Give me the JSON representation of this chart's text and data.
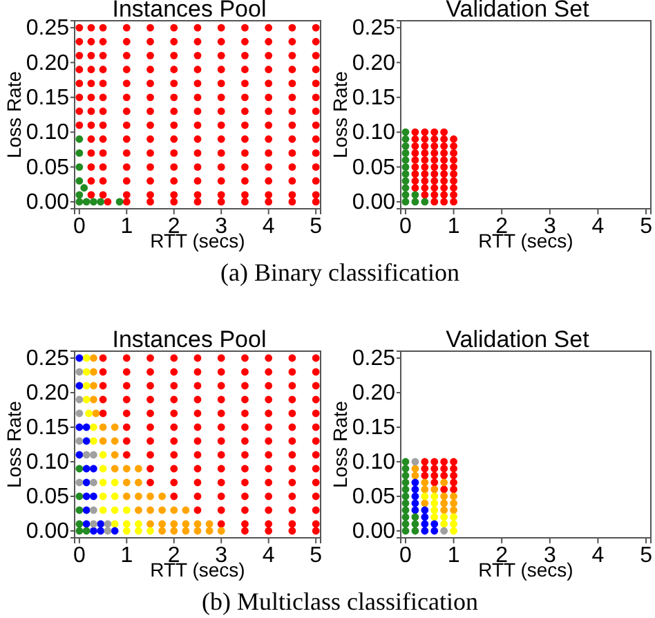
{
  "chart_data": [
    {
      "type": "scatter",
      "title": "Instances Pool",
      "xlabel": "RTT (secs)",
      "ylabel": "Loss Rate",
      "xlim": [
        -0.1,
        5.1
      ],
      "ylim": [
        -0.01,
        0.26
      ],
      "xticks": [
        0,
        1,
        2,
        3,
        4,
        5
      ],
      "yticks": [
        {
          "value": 0,
          "label": "0.00"
        },
        0.05,
        {
          "value": 0.1,
          "label": "0.10"
        },
        0.15,
        {
          "value": 0.2,
          "label": "0.20"
        },
        0.25
      ],
      "marker": "circle",
      "annotations": [
        "(a) Binary classification"
      ],
      "series": [
        {
          "color": "#ff0000",
          "x": [
            0.6,
            1,
            1.5,
            2,
            2.5,
            3,
            3.5,
            4,
            4.5,
            5,
            0.25,
            0.5,
            1,
            1.5,
            2,
            2.5,
            3,
            3.5,
            4,
            4.5,
            5,
            0.25,
            0.5,
            1,
            1.5,
            2,
            2.5,
            3,
            3.5,
            4,
            4.5,
            5,
            0.25,
            0.5,
            1,
            1.5,
            2,
            2.5,
            3,
            3.5,
            4,
            4.5,
            5,
            0.25,
            0.5,
            1,
            1.5,
            2,
            2.5,
            3,
            3.5,
            4,
            4.5,
            5,
            0.25,
            0.5,
            1,
            1.5,
            2,
            2.5,
            3,
            3.5,
            4,
            4.5,
            5,
            0,
            0.25,
            0.5,
            1,
            1.5,
            2,
            2.5,
            3,
            3.5,
            4,
            4.5,
            5,
            0,
            0.25,
            0.5,
            1,
            1.5,
            2,
            2.5,
            3,
            3.5,
            4,
            4.5,
            5,
            0,
            0.25,
            0.5,
            1,
            1.5,
            2,
            2.5,
            3,
            3.5,
            4,
            4.5,
            5,
            0,
            0.25,
            0.5,
            1,
            1.5,
            2,
            2.5,
            3,
            3.5,
            4,
            4.5,
            5,
            0,
            0.25,
            0.5,
            1,
            1.5,
            2,
            2.5,
            3,
            3.5,
            4,
            4.5,
            5,
            0,
            0.25,
            0.5,
            1,
            1.5,
            2,
            2.5,
            3,
            3.5,
            4,
            4.5,
            5,
            0,
            0.25,
            0.5,
            1,
            1.5,
            2,
            2.5,
            3,
            3.5,
            4,
            4.5,
            5,
            0,
            0.25,
            0.5,
            1,
            1.5,
            2,
            2.5,
            3,
            3.5,
            4,
            4.5,
            5
          ],
          "values": [
            0,
            0,
            0,
            0,
            0,
            0,
            0,
            0,
            0,
            0,
            0.01,
            0.01,
            0.01,
            0.01,
            0.01,
            0.01,
            0.01,
            0.01,
            0.01,
            0.01,
            0.01,
            0.03,
            0.03,
            0.03,
            0.03,
            0.03,
            0.03,
            0.03,
            0.03,
            0.03,
            0.03,
            0.03,
            0.05,
            0.05,
            0.05,
            0.05,
            0.05,
            0.05,
            0.05,
            0.05,
            0.05,
            0.05,
            0.05,
            0.07,
            0.07,
            0.07,
            0.07,
            0.07,
            0.07,
            0.07,
            0.07,
            0.07,
            0.07,
            0.07,
            0.09,
            0.09,
            0.09,
            0.09,
            0.09,
            0.09,
            0.09,
            0.09,
            0.09,
            0.09,
            0.09,
            0.11,
            0.11,
            0.11,
            0.11,
            0.11,
            0.11,
            0.11,
            0.11,
            0.11,
            0.11,
            0.11,
            0.11,
            0.13,
            0.13,
            0.13,
            0.13,
            0.13,
            0.13,
            0.13,
            0.13,
            0.13,
            0.13,
            0.13,
            0.13,
            0.15,
            0.15,
            0.15,
            0.15,
            0.15,
            0.15,
            0.15,
            0.15,
            0.15,
            0.15,
            0.15,
            0.15,
            0.17,
            0.17,
            0.17,
            0.17,
            0.17,
            0.17,
            0.17,
            0.17,
            0.17,
            0.17,
            0.17,
            0.17,
            0.19,
            0.19,
            0.19,
            0.19,
            0.19,
            0.19,
            0.19,
            0.19,
            0.19,
            0.19,
            0.19,
            0.19,
            0.21,
            0.21,
            0.21,
            0.21,
            0.21,
            0.21,
            0.21,
            0.21,
            0.21,
            0.21,
            0.21,
            0.21,
            0.23,
            0.23,
            0.23,
            0.23,
            0.23,
            0.23,
            0.23,
            0.23,
            0.23,
            0.23,
            0.23,
            0.23,
            0.25,
            0.25,
            0.25,
            0.25,
            0.25,
            0.25,
            0.25,
            0.25,
            0.25,
            0.25,
            0.25,
            0.25
          ]
        },
        {
          "color": "#228b22",
          "x": [
            0,
            0.15,
            0.3,
            0.45,
            0.85,
            0,
            0.1,
            0,
            0,
            0,
            0
          ],
          "values": [
            0,
            0,
            0,
            0,
            0,
            0.01,
            0.02,
            0.03,
            0.05,
            0.07,
            0.09
          ]
        }
      ]
    },
    {
      "type": "scatter",
      "title": "Validation Set",
      "xlabel": "RTT (secs)",
      "ylabel": "Loss Rate",
      "xlim": [
        -0.1,
        5.1
      ],
      "ylim": [
        -0.01,
        0.26
      ],
      "xticks": [
        0,
        1,
        2,
        3,
        4,
        5
      ],
      "yticks": [
        {
          "value": 0,
          "label": "0.00"
        },
        0.05,
        {
          "value": 0.1,
          "label": "0.10"
        },
        0.15,
        {
          "value": 0.2,
          "label": "0.20"
        },
        0.25
      ],
      "marker": "circle",
      "series": [
        {
          "color": "#ff0000",
          "x": [
            0.6,
            0.8,
            1,
            0.4,
            0.6,
            0.8,
            1,
            0.2,
            0.4,
            0.6,
            0.8,
            1,
            0.2,
            0.4,
            0.6,
            0.8,
            1,
            0.2,
            0.4,
            0.6,
            0.8,
            1,
            0.2,
            0.4,
            0.6,
            0.8,
            1,
            0.2,
            0.4,
            0.6,
            0.8,
            1,
            0.2,
            0.4,
            0.6,
            0.8,
            1,
            0.2,
            0.4,
            0.6,
            0.8,
            1,
            0.2,
            0.4,
            0.6,
            0.8,
            1,
            0.2,
            0.4,
            0.6,
            0.8
          ],
          "values": [
            0,
            0,
            0,
            0.01,
            0.01,
            0.01,
            0.01,
            0.02,
            0.02,
            0.02,
            0.02,
            0.02,
            0.03,
            0.03,
            0.03,
            0.03,
            0.03,
            0.04,
            0.04,
            0.04,
            0.04,
            0.04,
            0.05,
            0.05,
            0.05,
            0.05,
            0.05,
            0.06,
            0.06,
            0.06,
            0.06,
            0.06,
            0.07,
            0.07,
            0.07,
            0.07,
            0.07,
            0.08,
            0.08,
            0.08,
            0.08,
            0.08,
            0.09,
            0.09,
            0.09,
            0.09,
            0.09,
            0.1,
            0.1,
            0.1,
            0.1
          ]
        },
        {
          "color": "#228b22",
          "x": [
            0,
            0,
            0,
            0,
            0,
            0,
            0,
            0,
            0,
            0,
            0,
            0.2,
            0.4,
            0.2
          ],
          "values": [
            0,
            0.01,
            0.02,
            0.03,
            0.04,
            0.05,
            0.06,
            0.07,
            0.08,
            0.09,
            0.1,
            0,
            0,
            0.01
          ]
        }
      ]
    },
    {
      "type": "scatter",
      "title": "Instances Pool",
      "xlabel": "RTT (secs)",
      "ylabel": "Loss Rate",
      "xlim": [
        -0.1,
        5.1
      ],
      "ylim": [
        -0.01,
        0.26
      ],
      "xticks": [
        0,
        1,
        2,
        3,
        4,
        5
      ],
      "yticks": [
        {
          "value": 0,
          "label": "0.00"
        },
        0.05,
        {
          "value": 0.1,
          "label": "0.10"
        },
        0.15,
        {
          "value": 0.2,
          "label": "0.20"
        },
        0.25
      ],
      "marker": "circle",
      "annotations": [
        "(b) Multiclass classification"
      ],
      "series": [
        {
          "color": "#ff0000",
          "x": [
            0.5,
            1,
            1.5,
            2,
            2.5,
            3,
            3.5,
            4,
            4.5,
            5,
            0.5,
            1,
            1.5,
            2,
            2.5,
            3,
            3.5,
            4,
            4.5,
            5,
            0.5,
            1,
            1.5,
            2,
            2.5,
            3,
            3.5,
            4,
            4.5,
            5,
            0.5,
            1,
            1.5,
            2,
            2.5,
            3,
            3.5,
            4,
            4.5,
            5,
            0.5,
            1,
            1.5,
            2,
            2.5,
            3,
            3.5,
            4,
            4.5,
            5,
            1,
            1.5,
            2,
            2.5,
            3,
            3.5,
            4,
            4.5,
            5,
            1,
            1.5,
            2,
            2.5,
            3,
            3.5,
            4,
            4.5,
            5,
            1,
            1.5,
            2,
            2.5,
            3,
            3.5,
            4,
            4.5,
            5,
            1.5,
            2,
            2.5,
            3,
            3.5,
            4,
            4.5,
            5,
            1.5,
            2,
            2.5,
            3,
            3.5,
            4,
            4.5,
            5,
            2,
            2.5,
            3,
            3.5,
            4,
            4.5,
            5,
            2.5,
            3,
            3.5,
            4,
            4.5,
            5,
            3,
            3.5,
            4,
            4.5,
            5,
            3.5,
            4,
            4.5,
            5
          ],
          "values": [
            0.25,
            0.25,
            0.25,
            0.25,
            0.25,
            0.25,
            0.25,
            0.25,
            0.25,
            0.25,
            0.23,
            0.23,
            0.23,
            0.23,
            0.23,
            0.23,
            0.23,
            0.23,
            0.23,
            0.23,
            0.21,
            0.21,
            0.21,
            0.21,
            0.21,
            0.21,
            0.21,
            0.21,
            0.21,
            0.21,
            0.19,
            0.19,
            0.19,
            0.19,
            0.19,
            0.19,
            0.19,
            0.19,
            0.19,
            0.19,
            0.17,
            0.17,
            0.17,
            0.17,
            0.17,
            0.17,
            0.17,
            0.17,
            0.17,
            0.17,
            0.15,
            0.15,
            0.15,
            0.15,
            0.15,
            0.15,
            0.15,
            0.15,
            0.15,
            0.13,
            0.13,
            0.13,
            0.13,
            0.13,
            0.13,
            0.13,
            0.13,
            0.13,
            0.11,
            0.11,
            0.11,
            0.11,
            0.11,
            0.11,
            0.11,
            0.11,
            0.11,
            0.09,
            0.09,
            0.09,
            0.09,
            0.09,
            0.09,
            0.09,
            0.09,
            0.07,
            0.07,
            0.07,
            0.07,
            0.07,
            0.07,
            0.07,
            0.07,
            0.05,
            0.05,
            0.05,
            0.05,
            0.05,
            0.05,
            0.05,
            0.03,
            0.03,
            0.03,
            0.03,
            0.03,
            0.03,
            0.01,
            0.01,
            0.01,
            0.01,
            0.01,
            0,
            0,
            0,
            0
          ]
        },
        {
          "color": "#ffa500",
          "x": [
            0.3,
            0.3,
            0.3,
            0.3,
            0.35,
            0.5,
            0.75,
            0.5,
            0.75,
            0.75,
            0.75,
            1,
            1.25,
            1,
            1.25,
            1,
            1.25,
            1.5,
            1.75,
            1.25,
            1.5,
            1.75,
            2,
            2.25,
            1.5,
            1.75,
            2,
            2.25,
            2.5,
            2.75,
            1.75,
            2,
            2.25,
            2.5,
            2.75,
            3
          ],
          "values": [
            0.25,
            0.23,
            0.21,
            0.19,
            0.17,
            0.15,
            0.15,
            0.13,
            0.13,
            0.11,
            0.09,
            0.09,
            0.09,
            0.07,
            0.07,
            0.05,
            0.05,
            0.05,
            0.05,
            0.03,
            0.03,
            0.03,
            0.03,
            0.03,
            0.01,
            0.01,
            0.01,
            0.01,
            0.01,
            0.01,
            0,
            0,
            0,
            0,
            0,
            0
          ]
        },
        {
          "color": "#ffff00",
          "x": [
            0.15,
            0.15,
            0.15,
            0.15,
            0.2,
            0.3,
            0.3,
            0.5,
            0.5,
            0.5,
            0.75,
            0.5,
            0.75,
            0.5,
            0.75,
            1,
            0.75,
            1,
            1.25,
            1,
            1.25,
            1.5
          ],
          "values": [
            0.25,
            0.23,
            0.21,
            0.19,
            0.17,
            0.15,
            0.13,
            0.11,
            0.09,
            0.07,
            0.07,
            0.05,
            0.05,
            0.03,
            0.03,
            0.03,
            0.01,
            0.01,
            0.01,
            0,
            0,
            0
          ]
        },
        {
          "color": "#0000ff",
          "x": [
            0,
            0,
            0,
            0.15,
            0.15,
            0,
            0.15,
            0.3,
            0.15,
            0.15,
            0.3,
            0.15,
            0.15,
            0.45,
            0.3,
            0.45,
            0.75
          ],
          "values": [
            0.25,
            0.21,
            0.15,
            0.15,
            0.13,
            0.11,
            0.09,
            0.09,
            0.07,
            0.05,
            0.05,
            0.03,
            0.01,
            0.01,
            0,
            0,
            0
          ]
        },
        {
          "color": "#a0a0a0",
          "x": [
            0,
            0,
            0,
            0,
            0.15,
            0.3,
            0,
            0.3,
            0.3,
            0.3,
            0.6,
            0.6
          ],
          "values": [
            0.23,
            0.19,
            0.17,
            0.13,
            0.11,
            0.11,
            0.07,
            0.07,
            0.03,
            0.01,
            0.01,
            0
          ]
        },
        {
          "color": "#228b22",
          "x": [
            0,
            0,
            0,
            0,
            0,
            0.15
          ],
          "values": [
            0.09,
            0.05,
            0.03,
            0.01,
            0,
            0
          ]
        }
      ]
    },
    {
      "type": "scatter",
      "title": "Validation Set",
      "xlabel": "RTT (secs)",
      "ylabel": "Loss Rate",
      "xlim": [
        -0.1,
        5.1
      ],
      "ylim": [
        -0.01,
        0.26
      ],
      "xticks": [
        0,
        1,
        2,
        3,
        4,
        5
      ],
      "yticks": [
        {
          "value": 0,
          "label": "0.00"
        },
        0.05,
        {
          "value": 0.1,
          "label": "0.10"
        },
        0.15,
        {
          "value": 0.2,
          "label": "0.20"
        },
        0.25
      ],
      "marker": "circle",
      "series": [
        {
          "color": "#ff0000",
          "x": [
            0.4,
            0.6,
            0.8,
            1,
            0.4,
            0.6,
            0.8,
            1,
            0.4,
            0.6,
            0.8,
            1,
            0.6,
            1,
            0.8,
            1
          ],
          "values": [
            0.1,
            0.1,
            0.1,
            0.1,
            0.09,
            0.09,
            0.09,
            0.09,
            0.08,
            0.08,
            0.08,
            0.08,
            0.07,
            0.07,
            0.06,
            0.06
          ]
        },
        {
          "color": "#ffa500",
          "x": [
            0.2,
            0.2,
            0.4,
            0.8,
            0.4,
            0.6,
            0.8,
            1,
            0.4,
            0.8,
            1,
            0.8,
            1
          ],
          "values": [
            0.09,
            0.08,
            0.07,
            0.07,
            0.06,
            0.06,
            0.05,
            0.05,
            0.04,
            0.04,
            0.04,
            0.03,
            0.03
          ]
        },
        {
          "color": "#ffff00",
          "x": [
            0.4,
            0.6,
            0.6,
            0.6,
            0.6,
            0.8,
            1,
            0.8,
            1,
            1
          ],
          "values": [
            0.05,
            0.05,
            0.04,
            0.03,
            0.02,
            0.02,
            0.02,
            0.01,
            0.01,
            0
          ]
        },
        {
          "color": "#0000ff",
          "x": [
            0.2,
            0.2,
            0.2,
            0.2,
            0.2,
            0.4,
            0.4,
            0.4,
            0.6,
            0.4,
            0.6
          ],
          "values": [
            0.07,
            0.06,
            0.05,
            0.04,
            0.03,
            0.03,
            0.02,
            0.01,
            0.01,
            0,
            0
          ]
        },
        {
          "color": "#a0a0a0",
          "x": [
            0.2,
            0.8
          ],
          "values": [
            0.1,
            0
          ]
        },
        {
          "color": "#228b22",
          "x": [
            0,
            0,
            0,
            0,
            0,
            0,
            0,
            0,
            0,
            0,
            0,
            0.2,
            0.2,
            0.2
          ],
          "values": [
            0,
            0.01,
            0.02,
            0.03,
            0.04,
            0.05,
            0.06,
            0.07,
            0.08,
            0.09,
            0.1,
            0.02,
            0.01,
            0
          ]
        }
      ]
    }
  ]
}
